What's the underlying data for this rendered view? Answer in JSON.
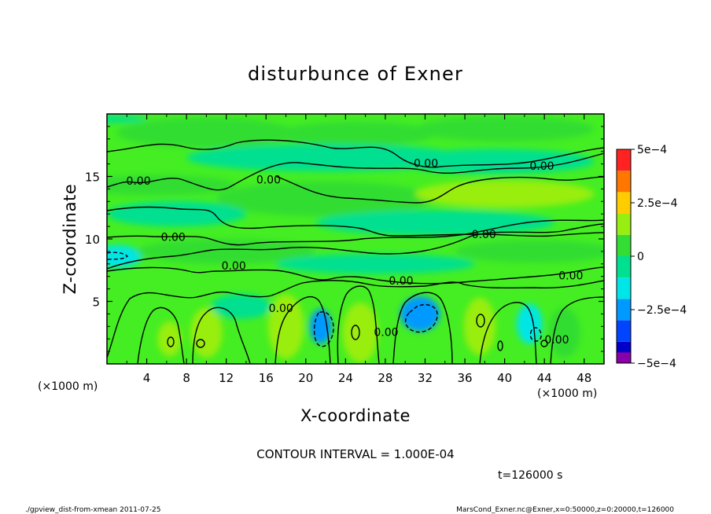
{
  "chart_data": {
    "type": "heatmap",
    "title": "disturbunce of Exner",
    "xlabel": "X-coordinate",
    "ylabel": "Z-coordinate",
    "x_unit_left": "(×1000 m)",
    "x_unit_right": "(×1000 m)",
    "xlim": [
      0,
      50
    ],
    "ylim": [
      0,
      20
    ],
    "x_ticks": [
      4,
      8,
      12,
      16,
      20,
      24,
      28,
      32,
      36,
      40,
      44,
      48
    ],
    "y_ticks": [
      5,
      10,
      15
    ],
    "contour_interval_text": "CONTOUR INTERVAL = 1.000E-04",
    "time_text": "t=126000 s",
    "footer_left": "./gpview_dist-from-xmean  2011-07-25",
    "footer_right": "MarsCond_Exner.nc@Exner,x=0:50000,z=0:20000,t=126000",
    "colorbar": {
      "range": [
        -0.0005,
        0.0005
      ],
      "levels": [
        -0.0005,
        -0.0004,
        -0.0003,
        -0.0002,
        -0.0001,
        0,
        0.0001,
        0.0002,
        0.0003,
        0.0004,
        0.0005
      ],
      "colors": [
        "#8800a8",
        "#0000c8",
        "#0044ff",
        "#0099ff",
        "#00e6e6",
        "#00e090",
        "#33dd33",
        "#99ee11",
        "#ffcc00",
        "#ff7700",
        "#ff2222",
        "#ff8888"
      ],
      "labels": [
        {
          "value": 0.0005,
          "text": "5e−4"
        },
        {
          "value": 0.00025,
          "text": "2.5e−4"
        },
        {
          "value": 0,
          "text": "0"
        },
        {
          "value": -0.00025,
          "text": "−2.5e−4"
        },
        {
          "value": -0.0005,
          "text": "−5e−4"
        }
      ]
    },
    "contour_labels": [
      {
        "x": 3.8,
        "z": 14.6,
        "text": "0.00"
      },
      {
        "x": 19.5,
        "z": 14.7,
        "text": "0.00"
      },
      {
        "x": 38.5,
        "z": 16.0,
        "text": "0.00"
      },
      {
        "x": 52.5,
        "z": 15.8,
        "text": "0.00"
      },
      {
        "x": 8.0,
        "z": 10.1,
        "text": "0.00"
      },
      {
        "x": 45.5,
        "z": 10.3,
        "text": "0.00"
      },
      {
        "x": 15.3,
        "z": 7.8,
        "text": "0.00"
      },
      {
        "x": 35.5,
        "z": 6.6,
        "text": "0.00"
      },
      {
        "x": 56.0,
        "z": 7.0,
        "text": "0.00"
      },
      {
        "x": 21.0,
        "z": 4.4,
        "text": "0.00"
      },
      {
        "x": 33.7,
        "z": 2.5,
        "text": "0.00"
      },
      {
        "x": 54.3,
        "z": 1.9,
        "text": "0.00"
      }
    ],
    "field": [
      {
        "x": 0,
        "z": 19.6,
        "rx": 4,
        "rz": 0.3,
        "value": -8e-05
      },
      {
        "x": 10,
        "z": 18.5,
        "rx": 9,
        "rz": 1.2,
        "value": 5e-05
      },
      {
        "x": 25,
        "z": 18.4,
        "rx": 8,
        "rz": 1.0,
        "value": 7e-05
      },
      {
        "x": 40,
        "z": 18.8,
        "rx": 9,
        "rz": 1.0,
        "value": 4e-05
      },
      {
        "x": 22,
        "z": 16.5,
        "rx": 14,
        "rz": 1.1,
        "value": -8e-05
      },
      {
        "x": 39,
        "z": 16.2,
        "rx": 10,
        "rz": 1.0,
        "value": -6e-05
      },
      {
        "x": 5,
        "z": 14.3,
        "rx": 8,
        "rz": 0.8,
        "value": 8e-05
      },
      {
        "x": 22,
        "z": 13.2,
        "rx": 11,
        "rz": 1.4,
        "value": 6e-05
      },
      {
        "x": 40,
        "z": 13.6,
        "rx": 9,
        "rz": 1.1,
        "value": 0.0001
      },
      {
        "x": 7,
        "z": 12.0,
        "rx": 7,
        "rz": 1.0,
        "value": -6e-05
      },
      {
        "x": 33,
        "z": 11.3,
        "rx": 12,
        "rz": 1.0,
        "value": -9e-05
      },
      {
        "x": 1,
        "z": 8.6,
        "rx": 2.5,
        "rz": 0.9,
        "value": -0.00012
      },
      {
        "x": 12,
        "z": 9.0,
        "rx": 9,
        "rz": 1.0,
        "value": 8e-05
      },
      {
        "x": 43,
        "z": 9.0,
        "rx": 8,
        "rz": 0.9,
        "value": 6e-05
      },
      {
        "x": 27,
        "z": 8.0,
        "rx": 10,
        "rz": 0.8,
        "value": -5e-05
      },
      {
        "x": 21.5,
        "z": 3.0,
        "rx": 1.1,
        "rz": 1.4,
        "value": -0.00025
      },
      {
        "x": 31.5,
        "z": 4.0,
        "rx": 2.0,
        "rz": 1.4,
        "value": -0.00022
      },
      {
        "x": 42.5,
        "z": 3.2,
        "rx": 1.3,
        "rz": 1.6,
        "value": -0.00015
      },
      {
        "x": 25.5,
        "z": 2.5,
        "rx": 1.8,
        "rz": 2.4,
        "value": 0.00015
      },
      {
        "x": 18.0,
        "z": 3.0,
        "rx": 1.8,
        "rz": 2.6,
        "value": 0.00012
      },
      {
        "x": 10.0,
        "z": 2.5,
        "rx": 1.6,
        "rz": 2.0,
        "value": 0.00013
      },
      {
        "x": 6.3,
        "z": 2.0,
        "rx": 1.2,
        "rz": 1.4,
        "value": 0.00012
      },
      {
        "x": 37.5,
        "z": 3.0,
        "rx": 1.6,
        "rz": 2.3,
        "value": 0.00011
      },
      {
        "x": 46.0,
        "z": 2.5,
        "rx": 1.6,
        "rz": 2.0,
        "value": 9e-05
      },
      {
        "x": 13.5,
        "z": 4.6,
        "rx": 3,
        "rz": 1.0,
        "value": -5e-05
      }
    ]
  }
}
